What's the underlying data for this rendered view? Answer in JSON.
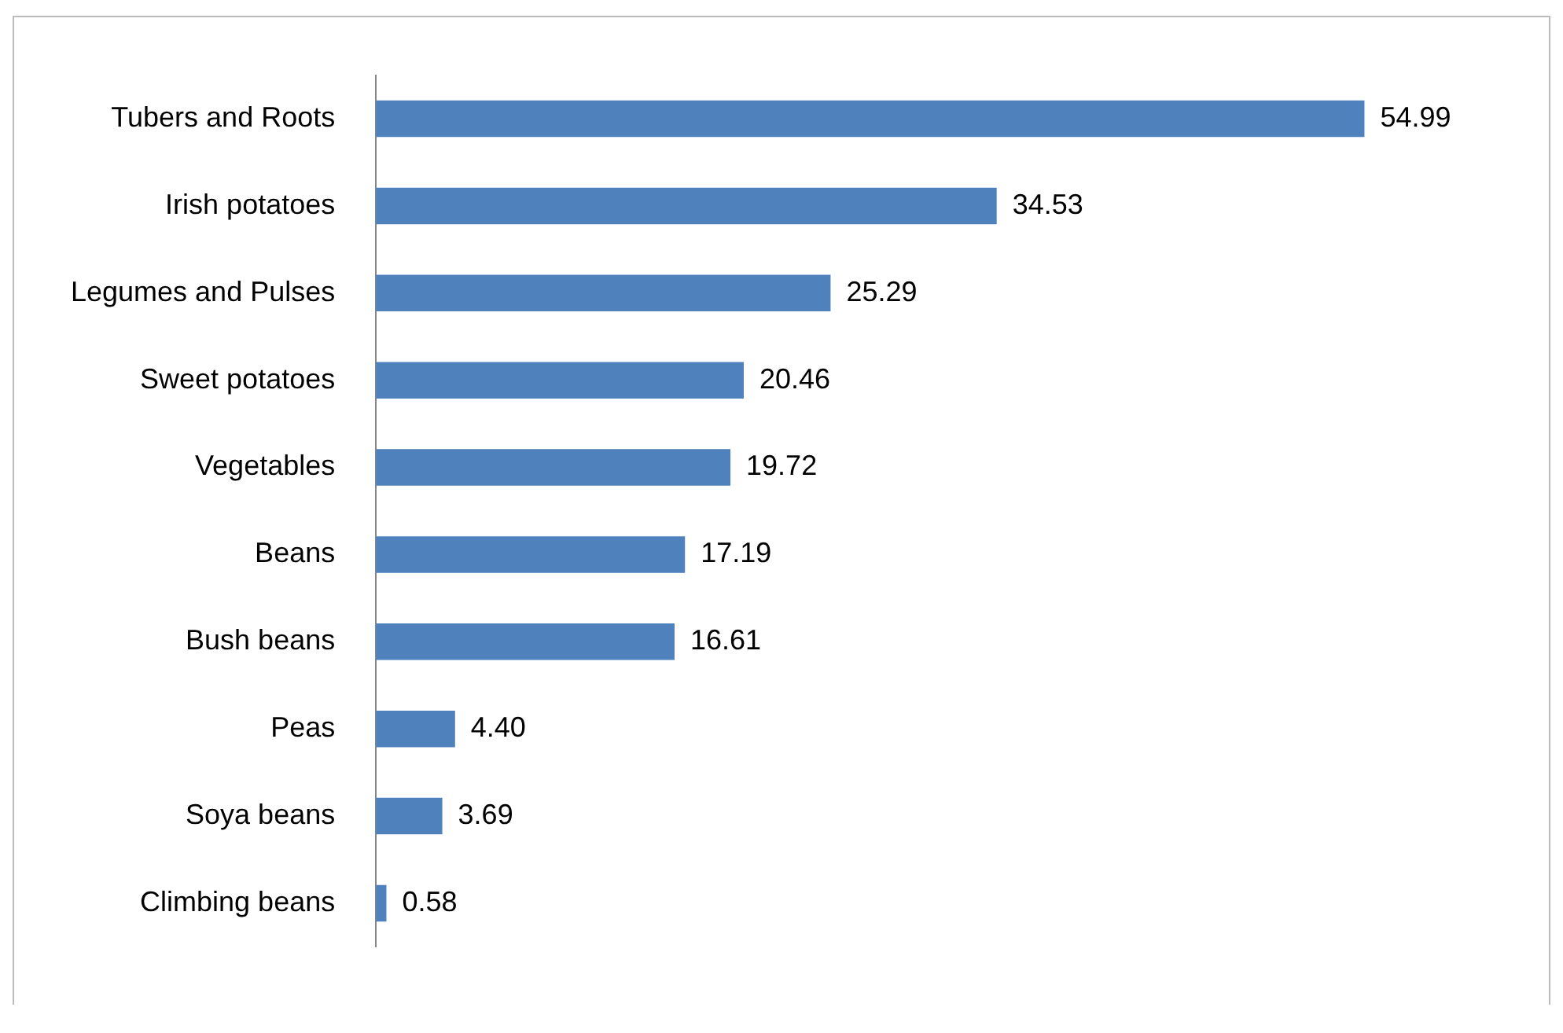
{
  "chart_data": {
    "type": "bar",
    "orientation": "horizontal",
    "categories": [
      "Tubers and Roots",
      "Irish potatoes",
      "Legumes and Pulses",
      "Sweet potatoes",
      "Vegetables",
      "Beans",
      "Bush beans",
      "Peas",
      "Soya beans",
      "Climbing beans"
    ],
    "values": [
      54.99,
      34.53,
      25.29,
      20.46,
      19.72,
      17.19,
      16.61,
      4.4,
      3.69,
      0.58
    ],
    "value_labels": [
      "54.99",
      "34.53",
      "25.29",
      "20.46",
      "19.72",
      "17.19",
      "16.61",
      "4.40",
      "3.69",
      "0.58"
    ],
    "color": "#4f81bd",
    "data_labels": true,
    "grid": false,
    "legend": false,
    "tick_labels": "y"
  }
}
